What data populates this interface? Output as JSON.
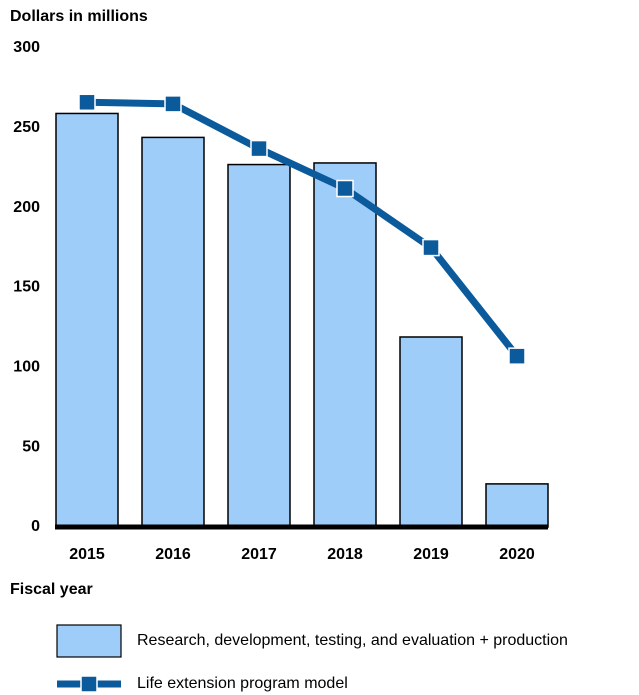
{
  "chart_data": {
    "type": "bar",
    "y_label": "Dollars in millions",
    "x_label": "Fiscal year",
    "categories": [
      "2015",
      "2016",
      "2017",
      "2018",
      "2019",
      "2020"
    ],
    "series": [
      {
        "name": "Research, development, testing, and evaluation + production",
        "type": "bar",
        "color": "#9fcdfa",
        "values": [
          259,
          244,
          227,
          228,
          119,
          27
        ]
      },
      {
        "name": "Life extension program model",
        "type": "line",
        "color": "#0b5a9c",
        "values": [
          266,
          265,
          237,
          212,
          175,
          107
        ]
      }
    ],
    "ylim": [
      0,
      300
    ],
    "yticks": [
      0,
      50,
      100,
      150,
      200,
      250,
      300
    ],
    "grid": false
  }
}
